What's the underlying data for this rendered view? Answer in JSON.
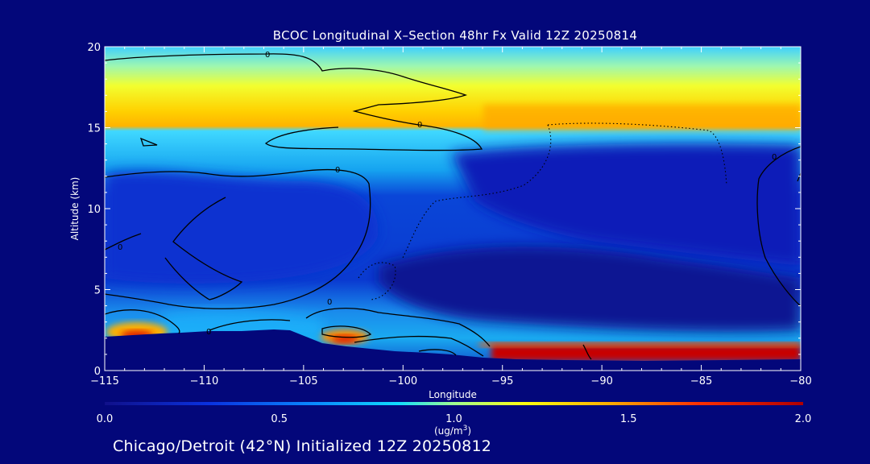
{
  "chart_data": {
    "type": "heatmap",
    "title": "BCOC Longitudinal X–Section 48hr  Fx Valid 12Z 20250814",
    "xlabel": "Longitude",
    "ylabel": "Altitude (km)",
    "xlim": [
      -115,
      -80
    ],
    "ylim": [
      0,
      20
    ],
    "x_ticks": [
      -115,
      -110,
      -105,
      -100,
      -95,
      -90,
      -85,
      -80
    ],
    "y_ticks": [
      0,
      5,
      10,
      15,
      20
    ],
    "x_tick_labels": [
      "−115",
      "−110",
      "−105",
      "−100",
      "−95",
      "−90",
      "−85",
      "−80"
    ],
    "y_tick_labels": [
      "0",
      "5",
      "10",
      "15",
      "20"
    ],
    "colorbar": {
      "min": 0.0,
      "max": 2.0,
      "ticks": [
        0.0,
        0.5,
        1.0,
        1.5,
        2.0
      ],
      "tick_labels": [
        "0.0",
        "0.5",
        "1.0",
        "1.5",
        "2.0"
      ],
      "units_main": "(ug/m",
      "units_sup": "3",
      "units_tail": ")"
    },
    "contour_label": "0",
    "colors": {
      "background": "#03077a",
      "low": "#0a0aa0",
      "mid": "#00c0ff",
      "high_mid": "#ffe000",
      "high": "#c00000"
    },
    "field_regions": [
      {
        "region": "upper layer 15-20 km",
        "value_range": [
          0.8,
          1.2
        ]
      },
      {
        "region": "mid troposphere 5-13 km",
        "value_range": [
          0.2,
          0.5
        ]
      },
      {
        "region": "surface layer east of -95",
        "value_range": [
          1.6,
          2.0
        ]
      },
      {
        "region": "surface near -113",
        "value_range": [
          1.4,
          1.7
        ]
      },
      {
        "region": "surface near -103",
        "value_range": [
          1.4,
          1.7
        ]
      }
    ]
  },
  "footer": "Chicago/Detroit (42°N) Initialized 12Z 20250812"
}
